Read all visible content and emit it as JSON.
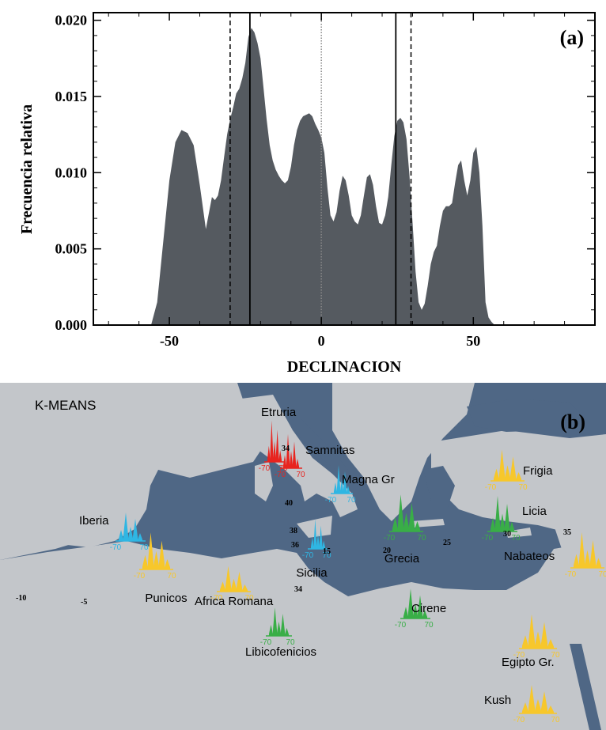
{
  "chart_data": [
    {
      "type": "area",
      "panel_label": "(a)",
      "xlabel": "DECLINACION",
      "ylabel": "Frecuencia relativa",
      "xlim": [
        -75,
        90
      ],
      "ylim": [
        0,
        0.0205
      ],
      "x_ticks": [
        -50,
        0,
        50
      ],
      "y_ticks": [
        "0.000",
        "0.005",
        "0.010",
        "0.015",
        "0.020"
      ],
      "fill_color": "#555a60",
      "x": [
        -56,
        -54,
        -52,
        -50,
        -48,
        -46,
        -44,
        -42,
        -40,
        -38,
        -36,
        -35,
        -34,
        -33,
        -32,
        -31,
        -30,
        -29,
        -28,
        -27,
        -26,
        -25,
        -24,
        -23,
        -22,
        -21,
        -20,
        -19,
        -18,
        -17,
        -16,
        -15,
        -14,
        -13,
        -12,
        -11,
        -10,
        -9,
        -8,
        -7,
        -6,
        -5,
        -4,
        -3,
        -2,
        -1,
        0,
        1,
        2,
        3,
        4,
        5,
        6,
        7,
        8,
        9,
        10,
        11,
        12,
        13,
        14,
        15,
        16,
        17,
        18,
        19,
        20,
        21,
        22,
        23,
        24,
        25,
        26,
        27,
        28,
        29,
        30,
        31,
        32,
        33,
        34,
        35,
        36,
        37,
        38,
        39,
        40,
        41,
        42,
        43,
        44,
        45,
        46,
        47,
        48,
        49,
        50,
        51,
        52,
        53,
        54,
        55,
        56,
        57
      ],
      "values": [
        0.0,
        0.0015,
        0.0055,
        0.0095,
        0.012,
        0.0128,
        0.0126,
        0.0118,
        0.0092,
        0.0063,
        0.0084,
        0.0082,
        0.0085,
        0.0095,
        0.011,
        0.0125,
        0.0135,
        0.0143,
        0.0152,
        0.0155,
        0.0162,
        0.0172,
        0.0189,
        0.0195,
        0.0192,
        0.0185,
        0.0175,
        0.0155,
        0.0135,
        0.0118,
        0.0108,
        0.0102,
        0.0098,
        0.0095,
        0.0093,
        0.0095,
        0.0104,
        0.0118,
        0.0128,
        0.0134,
        0.0137,
        0.0138,
        0.0139,
        0.0137,
        0.0132,
        0.0128,
        0.0123,
        0.0113,
        0.009,
        0.0072,
        0.0068,
        0.0074,
        0.0088,
        0.0098,
        0.0095,
        0.0085,
        0.0072,
        0.0068,
        0.0066,
        0.0072,
        0.0085,
        0.0097,
        0.0099,
        0.0092,
        0.0078,
        0.0067,
        0.0066,
        0.0072,
        0.0084,
        0.0105,
        0.0124,
        0.0134,
        0.0136,
        0.0133,
        0.0122,
        0.0098,
        0.0067,
        0.0035,
        0.0015,
        0.001,
        0.0014,
        0.0026,
        0.004,
        0.0048,
        0.0052,
        0.0065,
        0.0075,
        0.0078,
        0.0078,
        0.008,
        0.0093,
        0.0105,
        0.0108,
        0.0095,
        0.0085,
        0.0095,
        0.0113,
        0.0117,
        0.01,
        0.0065,
        0.0015,
        0.0005,
        0.0002,
        0.0
      ],
      "vertical_lines": [
        {
          "x": -30,
          "style": "dashed"
        },
        {
          "x": -23.5,
          "style": "solid"
        },
        {
          "x": 0,
          "style": "dotted"
        },
        {
          "x": 24.5,
          "style": "solid"
        },
        {
          "x": 29.5,
          "style": "dashed"
        }
      ]
    }
  ],
  "map": {
    "panel_label": "(b)",
    "title": "K-MEANS",
    "colors": {
      "sea": "#4f6785",
      "land": "#c3c6ca",
      "red": "#e8241f",
      "cyan": "#2fb6e3",
      "yellow": "#f7c72b",
      "green": "#39ae47"
    },
    "regions": [
      {
        "name": "Etruria",
        "color": "red",
        "min": "-70",
        "max": "70"
      },
      {
        "name": "Samnitas",
        "color": "red",
        "min": "-70",
        "max": "70"
      },
      {
        "name": "Magna Gr",
        "color": "cyan",
        "min": "-70",
        "max": "70"
      },
      {
        "name": "Iberia",
        "color": "cyan",
        "min": "-70",
        "max": "70"
      },
      {
        "name": "Punicos",
        "color": "yellow",
        "min": "-70",
        "max": "70"
      },
      {
        "name": "Sicilia",
        "color": "cyan",
        "min": "-70",
        "max": "70"
      },
      {
        "name": "Grecia",
        "color": "green",
        "min": "-70",
        "max": "70"
      },
      {
        "name": "Frigia",
        "color": "yellow",
        "min": "-70",
        "max": "70"
      },
      {
        "name": "Licia",
        "color": "green",
        "min": "-70",
        "max": "70"
      },
      {
        "name": "Nabateos",
        "color": "yellow",
        "min": "-70",
        "max": "70"
      },
      {
        "name": "Africa Romana",
        "color": "yellow",
        "min": "-70",
        "max": "70"
      },
      {
        "name": "Libicofenicios",
        "color": "green",
        "min": "-70",
        "max": "70"
      },
      {
        "name": "Cirene",
        "color": "green",
        "min": "-70",
        "max": "70"
      },
      {
        "name": "Egipto Gr.",
        "color": "yellow",
        "min": "-70",
        "max": "70"
      },
      {
        "name": "Kush",
        "color": "yellow",
        "min": "-70",
        "max": "70"
      }
    ],
    "numbers": [
      "-10",
      "-5",
      "34",
      "40",
      "38",
      "36",
      "15",
      "20",
      "25",
      "30",
      "35",
      "34"
    ]
  }
}
